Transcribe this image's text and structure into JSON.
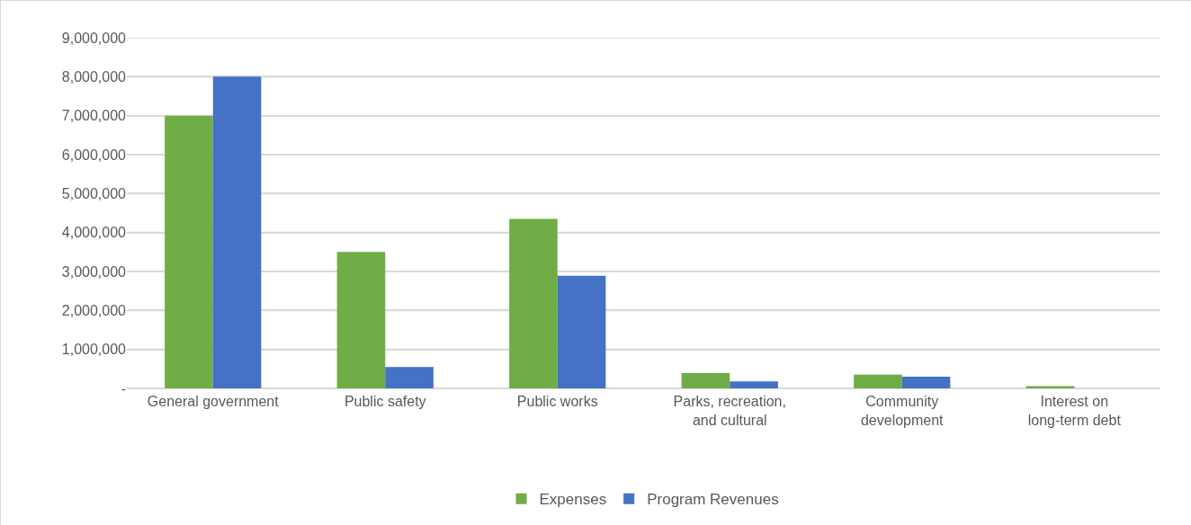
{
  "chart_data": {
    "type": "bar",
    "categories": [
      "General government",
      "Public safety",
      "Public works",
      "Parks, recreation, and cultural",
      "Community development",
      "Interest on long-term debt"
    ],
    "series": [
      {
        "name": "Expenses",
        "color": "#70ad47",
        "values": [
          7000000,
          3500000,
          4350000,
          390000,
          350000,
          60000
        ]
      },
      {
        "name": "Program Revenues",
        "color": "#4472c4",
        "values": [
          8000000,
          550000,
          2890000,
          180000,
          300000,
          0
        ]
      }
    ],
    "ylim": [
      0,
      9000000
    ],
    "yticks": [
      {
        "value": 0,
        "label": "-"
      },
      {
        "value": 1000000,
        "label": "1,000,000"
      },
      {
        "value": 2000000,
        "label": "2,000,000"
      },
      {
        "value": 3000000,
        "label": "3,000,000"
      },
      {
        "value": 4000000,
        "label": "4,000,000"
      },
      {
        "value": 5000000,
        "label": "5,000,000"
      },
      {
        "value": 6000000,
        "label": "6,000,000"
      },
      {
        "value": 7000000,
        "label": "7,000,000"
      },
      {
        "value": 8000000,
        "label": "8,000,000"
      },
      {
        "value": 9000000,
        "label": "9,000,000"
      }
    ],
    "grid": "y",
    "legend": "bottom"
  }
}
